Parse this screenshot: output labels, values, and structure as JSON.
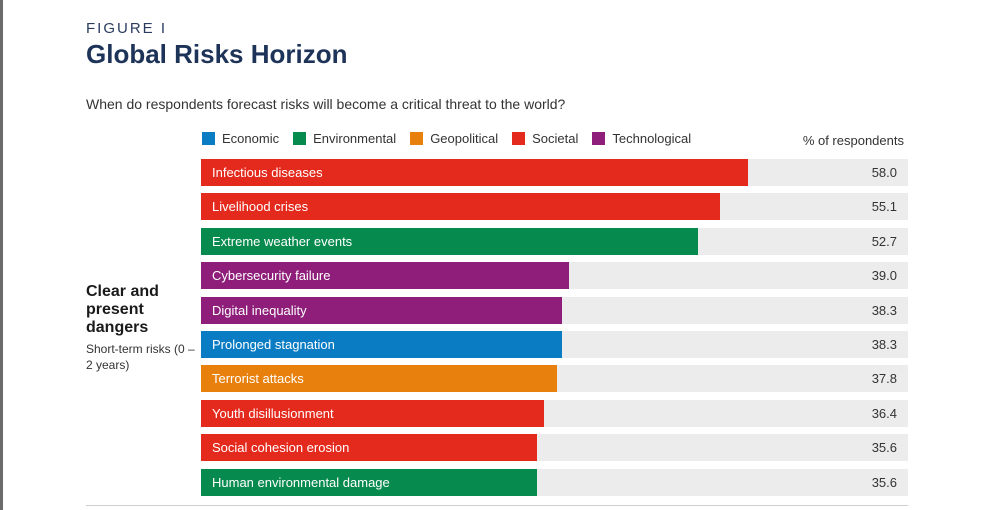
{
  "figure": {
    "label": "FIGURE I",
    "title": "Global Risks Horizon",
    "question": "When do respondents forecast risks will become a critical threat to the world?"
  },
  "legend": [
    {
      "name": "Economic",
      "color": "#0a7cc4"
    },
    {
      "name": "Environmental",
      "color": "#078a4e"
    },
    {
      "name": "Geopolitical",
      "color": "#e8800e"
    },
    {
      "name": "Societal",
      "color": "#e4291d"
    },
    {
      "name": "Technological",
      "color": "#8e1e79"
    }
  ],
  "group": {
    "title": "Clear and present dangers",
    "subtitle": "Short-term risks (0 – 2 years)"
  },
  "chart_data": {
    "type": "bar",
    "orientation": "horizontal",
    "value_label": "% of respondents",
    "xlim": [
      0,
      75
    ],
    "grid": false,
    "legend_position": "top",
    "bars": [
      {
        "label": "Infectious diseases",
        "value": 58.0,
        "value_text": "58.0",
        "category": "Societal"
      },
      {
        "label": "Livelihood crises",
        "value": 55.1,
        "value_text": "55.1",
        "category": "Societal"
      },
      {
        "label": "Extreme weather events",
        "value": 52.7,
        "value_text": "52.7",
        "category": "Environmental"
      },
      {
        "label": "Cybersecurity failure",
        "value": 39.0,
        "value_text": "39.0",
        "category": "Technological"
      },
      {
        "label": "Digital inequality",
        "value": 38.3,
        "value_text": "38.3",
        "category": "Technological"
      },
      {
        "label": "Prolonged stagnation",
        "value": 38.3,
        "value_text": "38.3",
        "category": "Economic"
      },
      {
        "label": "Terrorist attacks",
        "value": 37.8,
        "value_text": "37.8",
        "category": "Geopolitical"
      },
      {
        "label": "Youth disillusionment",
        "value": 36.4,
        "value_text": "36.4",
        "category": "Societal"
      },
      {
        "label": "Social cohesion erosion",
        "value": 35.6,
        "value_text": "35.6",
        "category": "Societal"
      },
      {
        "label": "Human environmental damage",
        "value": 35.6,
        "value_text": "35.6",
        "category": "Environmental"
      }
    ]
  }
}
